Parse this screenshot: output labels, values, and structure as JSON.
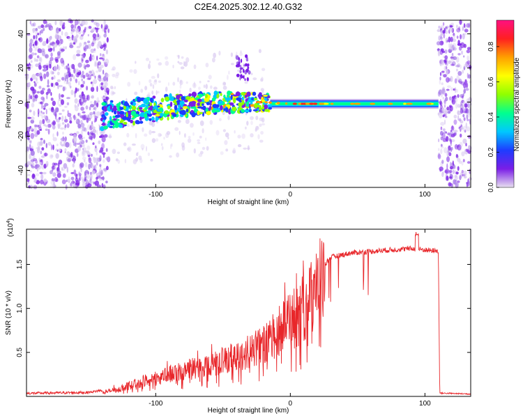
{
  "title": "C2E4.2025.302.12.40.G32",
  "chart_data": [
    {
      "type": "heatmap",
      "name": "spectrogram",
      "xlabel": "Height of straight line (km)",
      "ylabel": "Frequency (Hz)",
      "xlim": [
        -196,
        134
      ],
      "ylim": [
        -50,
        48
      ],
      "xticks": [
        -100,
        0,
        100
      ],
      "xtick_labels": [
        "-100",
        "0",
        "100"
      ],
      "yticks": [
        -40,
        -20,
        0,
        20,
        40
      ],
      "ytick_labels": [
        "-40",
        "-20",
        "0",
        "20",
        "40"
      ],
      "noise_regions_km": [
        [
          -196,
          -135
        ],
        [
          110,
          134
        ]
      ],
      "signal_band": {
        "start_km": -140,
        "end_km": 110,
        "center_freq_hz": [
          {
            "x": -140,
            "y": -8
          },
          {
            "x": -110,
            "y": -5
          },
          {
            "x": -80,
            "y": -2
          },
          {
            "x": -50,
            "y": 0
          },
          {
            "x": -20,
            "y": 0
          },
          {
            "x": 0,
            "y": -1
          },
          {
            "x": 50,
            "y": -1
          },
          {
            "x": 110,
            "y": -1
          }
        ],
        "burst": {
          "x": -35,
          "y": 20
        }
      },
      "colorbar": {
        "label": "Normalized spectral amplitude",
        "range": [
          0,
          0.95
        ],
        "ticks": [
          0,
          0.2,
          0.4,
          0.6,
          0.8
        ],
        "tick_labels": [
          "0.0",
          "0.2",
          "0.4",
          "0.6",
          "0.8"
        ],
        "colors": [
          "#e8e0f0",
          "#7a1ee6",
          "#1e3cff",
          "#00c8ff",
          "#00ff90",
          "#90ff00",
          "#ffff00",
          "#ffa000",
          "#ff2020",
          "#ff1080"
        ]
      }
    },
    {
      "type": "line",
      "name": "snr",
      "xlabel": "Height of straight line (km)",
      "ylabel": "SNR (10 * v/v)",
      "y_multiplier": "(x10",
      "y_multiplier_exp": "4",
      "y_multiplier_close": ")",
      "xlim": [
        -196,
        134
      ],
      "ylim": [
        0,
        1.9
      ],
      "xticks": [
        -100,
        0,
        100
      ],
      "xtick_labels": [
        "-100",
        "0",
        "100"
      ],
      "yticks": [
        0.5,
        1.0,
        1.5
      ],
      "ytick_labels": [
        "0.5",
        "1.0",
        "1.5"
      ],
      "color": "#e8262a",
      "envelope": [
        {
          "x": -196,
          "y": 0.02
        },
        {
          "x": -150,
          "y": 0.03
        },
        {
          "x": -130,
          "y": 0.08
        },
        {
          "x": -115,
          "y": 0.16
        },
        {
          "x": -100,
          "y": 0.24
        },
        {
          "x": -80,
          "y": 0.33
        },
        {
          "x": -60,
          "y": 0.4
        },
        {
          "x": -40,
          "y": 0.5
        },
        {
          "x": -20,
          "y": 0.64
        },
        {
          "x": 0,
          "y": 0.95
        },
        {
          "x": 10,
          "y": 1.12
        },
        {
          "x": 20,
          "y": 1.4
        },
        {
          "x": 30,
          "y": 1.58
        },
        {
          "x": 45,
          "y": 1.63
        },
        {
          "x": 70,
          "y": 1.66
        },
        {
          "x": 90,
          "y": 1.68
        },
        {
          "x": 110,
          "y": 1.65
        },
        {
          "x": 111,
          "y": 0.03
        },
        {
          "x": 134,
          "y": 0.02
        }
      ],
      "peak": {
        "x": 94,
        "y": 1.87
      }
    }
  ]
}
